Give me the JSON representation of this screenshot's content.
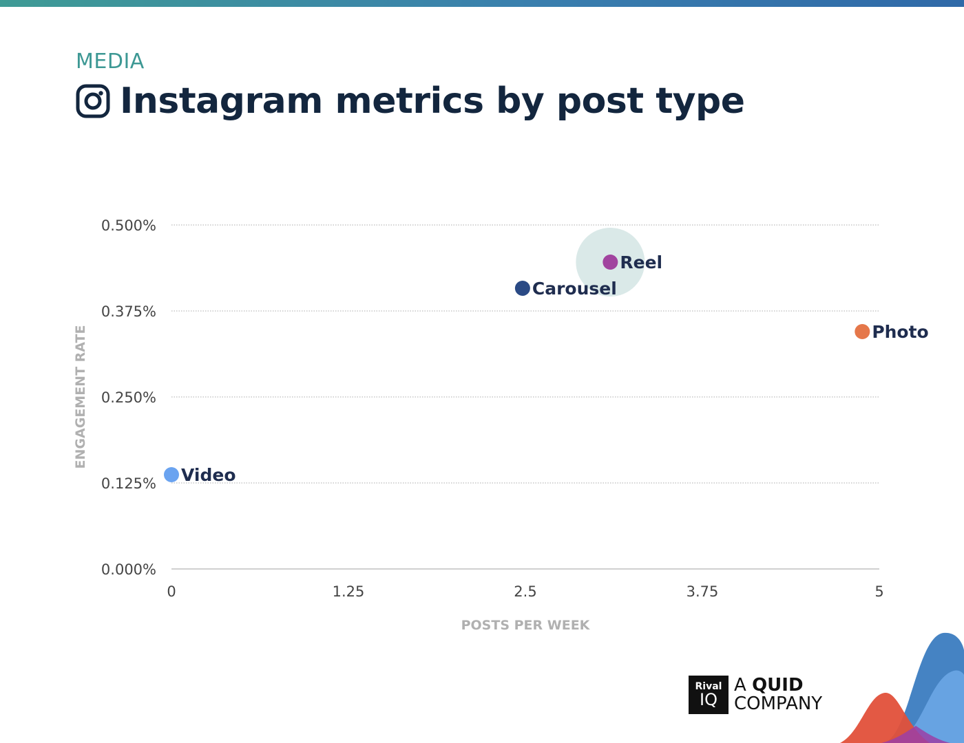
{
  "header": {
    "eyebrow": "MEDIA",
    "title": "Instagram metrics by post type",
    "icon": "instagram-icon"
  },
  "brand": {
    "box_top": "Rival",
    "box_bottom": "IQ",
    "line1_a": "A ",
    "line1_b": "QUID",
    "line2": "COMPANY"
  },
  "colors": {
    "title": "#13263e",
    "eyebrow": "#3d9894",
    "label": "#1f2d4f",
    "axis_title": "#b0b0b0",
    "bubble": "#d3e5e4"
  },
  "chart_data": {
    "type": "scatter",
    "xlabel": "POSTS PER WEEK",
    "ylabel": "ENGAGEMENT RATE",
    "xlim": [
      0,
      5
    ],
    "ylim": [
      0,
      0.5
    ],
    "x_ticks": [
      "0",
      "1.25",
      "2.5",
      "3.75",
      "5"
    ],
    "y_ticks": [
      "0.000%",
      "0.125%",
      "0.250%",
      "0.375%",
      "0.500%"
    ],
    "grid": true,
    "points": [
      {
        "name": "Video",
        "x": 0,
        "y": 0.137,
        "color": "#6aa3f0"
      },
      {
        "name": "Carousel",
        "x": 2.48,
        "y": 0.408,
        "color": "#2a4a85"
      },
      {
        "name": "Reel",
        "x": 3.1,
        "y": 0.446,
        "color": "#a1449f",
        "highlight": true
      },
      {
        "name": "Photo",
        "x": 4.88,
        "y": 0.345,
        "color": "#e5774a"
      }
    ]
  }
}
